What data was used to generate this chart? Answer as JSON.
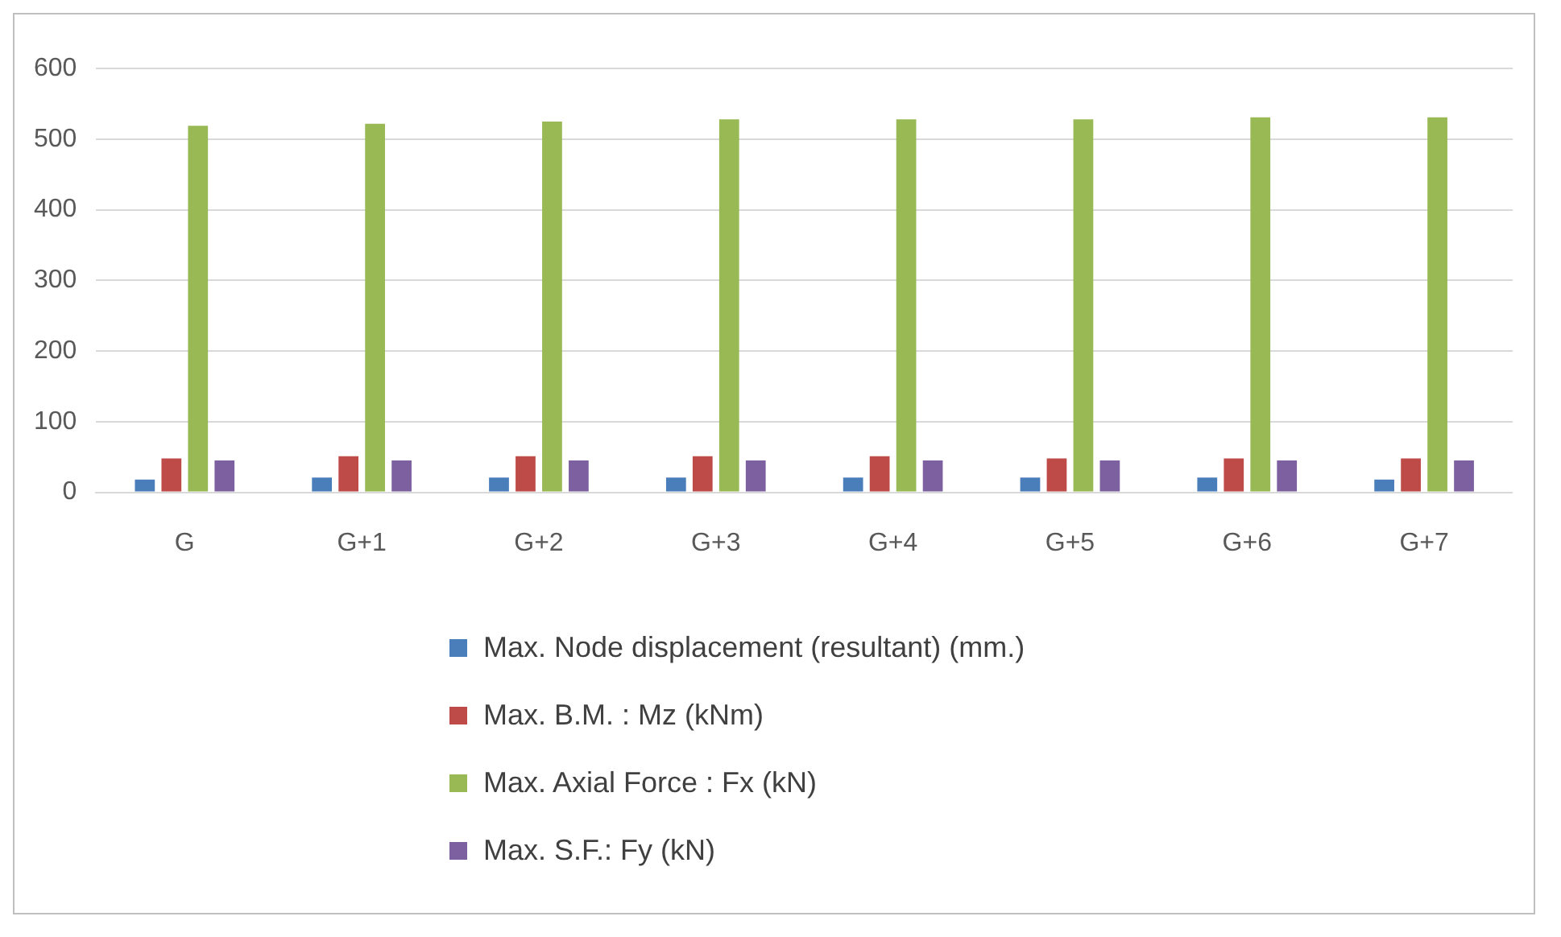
{
  "chart_data": {
    "type": "bar",
    "categories": [
      "G",
      "G+1",
      "G+2",
      "G+3",
      "G+4",
      "G+5",
      "G+6",
      "G+7"
    ],
    "series": [
      {
        "name": "Max. Node displacement (resultant) (mm.)",
        "color": "#4a7ebb",
        "values": [
          18,
          21,
          21,
          21,
          21,
          21,
          21,
          18
        ]
      },
      {
        "name": "Max. B.M. : Mz (kNm)",
        "color": "#be4b48",
        "values": [
          48,
          51,
          51,
          51,
          51,
          48,
          48,
          48
        ]
      },
      {
        "name": "Max. Axial Force : Fx (kN)",
        "color": "#98b954",
        "values": [
          519,
          522,
          525,
          528,
          528,
          528,
          531,
          531
        ]
      },
      {
        "name": "Max. S.F.: Fy (kN)",
        "color": "#7d60a0",
        "values": [
          45,
          45,
          45,
          45,
          45,
          45,
          45,
          45
        ]
      }
    ],
    "ylim": [
      0,
      600
    ],
    "yticks": [
      0,
      100,
      200,
      300,
      400,
      500,
      600
    ],
    "grid": "y",
    "legend": "bottom"
  }
}
